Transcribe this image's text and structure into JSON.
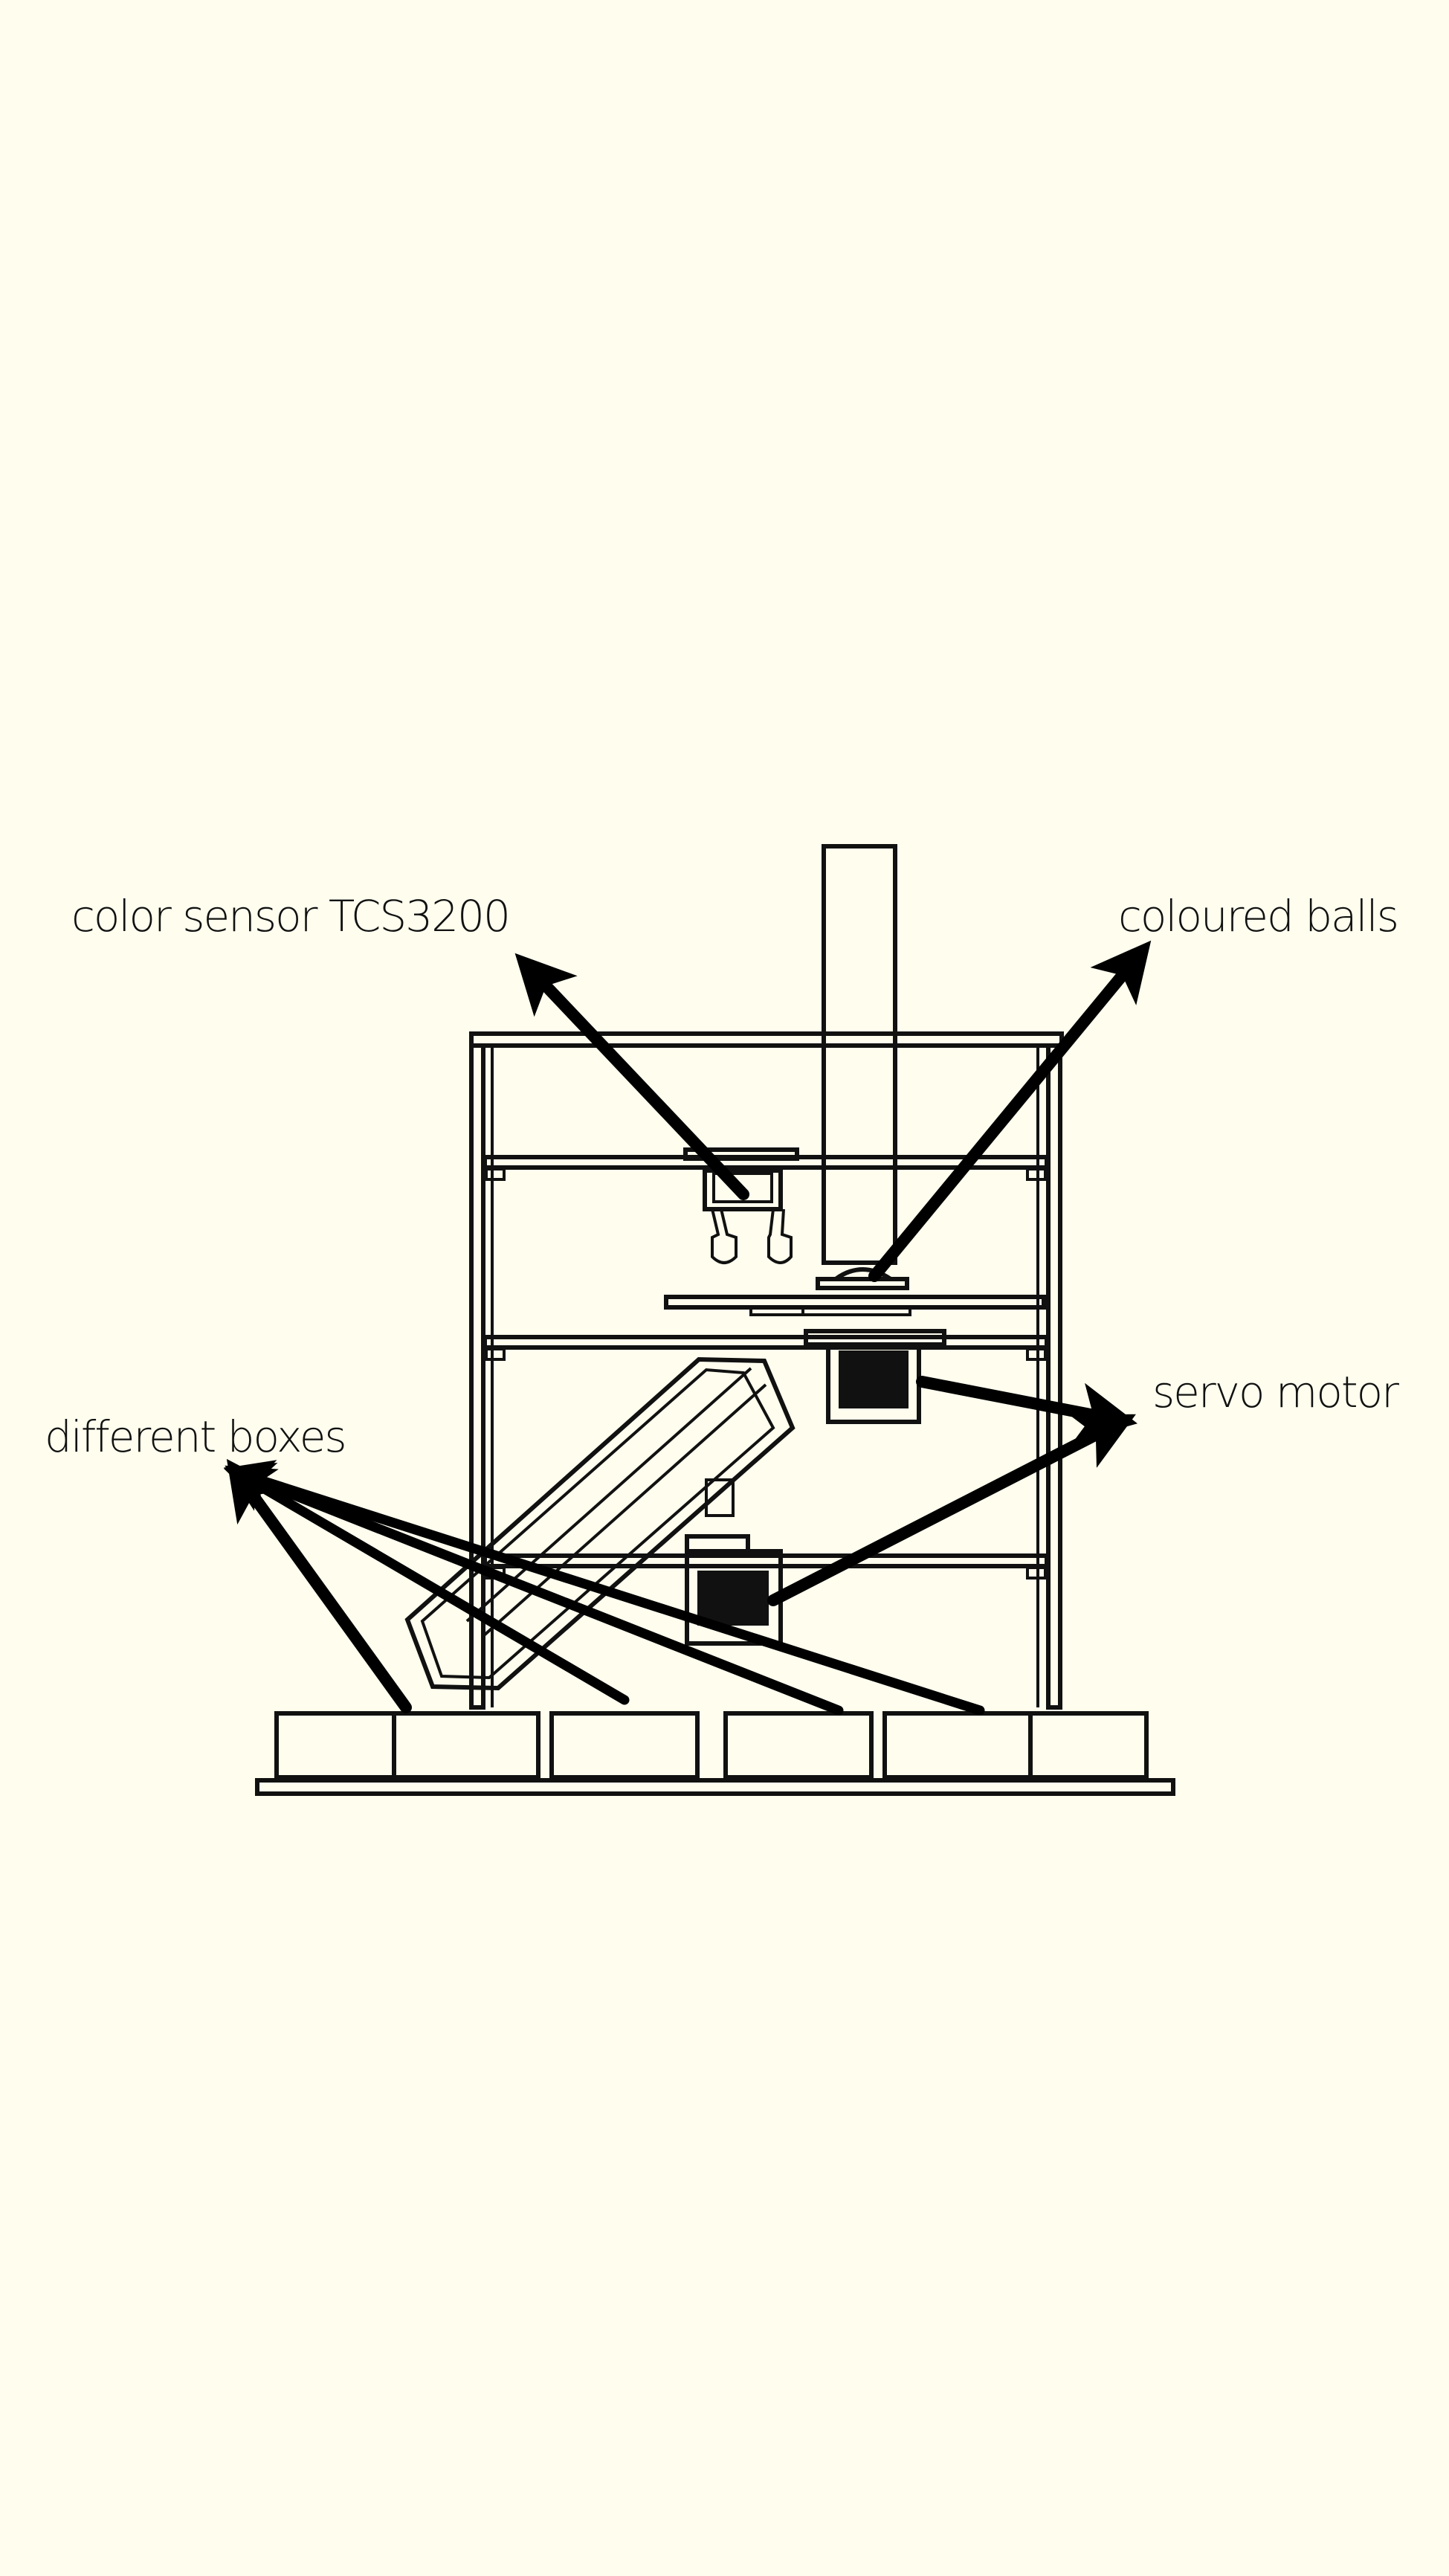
{
  "diagram": {
    "labels": {
      "color_sensor": "color sensor TCS3200",
      "coloured_balls": "coloured balls",
      "servo_motor": "servo motor",
      "different_boxes": "different boxes"
    },
    "colors": {
      "background": "#fefdee",
      "line": "#111111",
      "arrow": "#000000"
    }
  }
}
